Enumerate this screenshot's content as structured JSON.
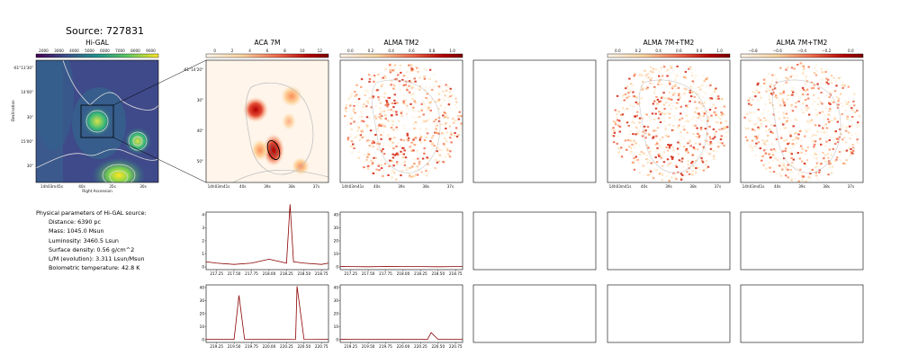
{
  "source": {
    "title": "Source: 727831"
  },
  "panels": [
    {
      "title": "Hi-GAL",
      "colorbar_ticks": [
        "2000",
        "3000",
        "4000",
        "5000",
        "6000",
        "7000",
        "8000",
        "9000"
      ],
      "xticks": [
        "14h03m45s",
        "40s",
        "35s",
        "30s"
      ],
      "yticks": [
        "-61°13'30\"",
        "14'00\"",
        "30\"",
        "15'00\"",
        "30\""
      ],
      "xlabel": "Right Ascension",
      "ylabel": "Declination"
    },
    {
      "title": "ACA 7M",
      "colorbar_ticks": [
        "0",
        "2",
        "4",
        "6",
        "8",
        "10",
        "12"
      ],
      "xticks": [
        "14h03m41s",
        "40s",
        "39s",
        "38s",
        "37s"
      ],
      "yticks": [
        "-61°14'20\"",
        "30\"",
        "40\"",
        "50\""
      ]
    },
    {
      "title": "ALMA TM2",
      "colorbar_ticks": [
        "0.0",
        "0.2",
        "0.4",
        "0.6",
        "0.8",
        "1.0"
      ],
      "xticks": [
        "14h03m41s",
        "40s",
        "39s",
        "38s",
        "37s"
      ]
    },
    {
      "title": "ALMA 7M+TM2",
      "colorbar_ticks": [
        "0.0",
        "0.2",
        "0.4",
        "0.6",
        "0.8",
        "1.0"
      ],
      "xticks": [
        "14h03m41s",
        "40s",
        "39s",
        "38s",
        "37s"
      ]
    },
    {
      "title": "ALMA 7M+TM2",
      "colorbar_ticks": [
        "−0.8",
        "−0.6",
        "−0.4",
        "−0.2",
        "0.0"
      ],
      "xticks": [
        "14h03m41s",
        "40s",
        "39s",
        "38s",
        "37s"
      ]
    }
  ],
  "parameters": {
    "heading": "Physical parameters of Hi-GAL source:",
    "lines": [
      "Distance: 6390 pc",
      "Mass: 1045.0 Msun",
      "Luminosity: 3460.5 Lsun",
      "Surface density: 0.56 g/cm^2",
      "L/M (evolution): 3.311 Lsun/Msun",
      "Bolometric temperature: 42.8 K"
    ]
  },
  "chart_data": [
    {
      "type": "line",
      "panel": "ACA 7M spectrum (row 1)",
      "x": [
        217.1,
        217.25,
        217.5,
        217.75,
        218.0,
        218.25,
        218.3,
        218.35,
        218.5,
        218.75,
        218.85
      ],
      "values": [
        0.4,
        0.3,
        0.2,
        0.3,
        0.6,
        0.3,
        4.8,
        0.4,
        0.3,
        0.2,
        0.3
      ],
      "xticks": [
        "217.25",
        "217.50",
        "217.75",
        "218.00",
        "218.25",
        "218.50",
        "218.75"
      ],
      "yticks": [
        "0",
        "1",
        "2",
        "3",
        "4"
      ],
      "xlim": [
        217.1,
        218.85
      ],
      "ylim": [
        -0.2,
        4.2
      ]
    },
    {
      "type": "line",
      "panel": "ALMA TM2 spectrum (row 1)",
      "x": [
        217.1,
        217.25,
        217.5,
        217.75,
        218.0,
        218.25,
        218.5,
        218.75,
        218.85
      ],
      "values": [
        0.4,
        0.3,
        0.2,
        0.4,
        0.3,
        0.3,
        0.2,
        0.3,
        0.3
      ],
      "xticks": [
        "217.25",
        "217.50",
        "217.75",
        "218.00",
        "218.25",
        "218.50",
        "218.75"
      ],
      "yticks": [
        "0",
        "10",
        "20",
        "30",
        "40"
      ],
      "xlim": [
        217.1,
        218.85
      ],
      "ylim": [
        -2,
        42
      ]
    },
    {
      "type": "line",
      "panel": "ACA 7M spectrum (row 2)",
      "x": [
        219.1,
        219.25,
        219.5,
        219.57,
        219.65,
        219.75,
        220.0,
        220.25,
        220.38,
        220.4,
        220.5,
        220.75,
        220.85
      ],
      "values": [
        0.5,
        0.4,
        0.3,
        34,
        0.4,
        0.3,
        0.3,
        0.4,
        0.5,
        41,
        0.4,
        0.3,
        0.4
      ],
      "xticks": [
        "219.25",
        "219.50",
        "219.75",
        "220.00",
        "220.25",
        "220.50",
        "220.75"
      ],
      "yticks": [
        "0",
        "10",
        "20",
        "30",
        "40"
      ],
      "xlim": [
        219.1,
        220.85
      ],
      "ylim": [
        -2,
        42
      ]
    },
    {
      "type": "line",
      "panel": "ALMA TM2 spectrum (row 2)",
      "x": [
        219.1,
        219.25,
        219.5,
        219.75,
        220.0,
        220.25,
        220.35,
        220.4,
        220.5,
        220.75,
        220.85
      ],
      "values": [
        0.4,
        0.3,
        0.3,
        0.4,
        0.3,
        0.4,
        0.4,
        5.5,
        0.3,
        0.3,
        0.3
      ],
      "xticks": [
        "219.25",
        "219.50",
        "219.75",
        "220.00",
        "220.25",
        "220.50",
        "220.75"
      ],
      "yticks": [
        "0",
        "10",
        "20",
        "30",
        "40"
      ],
      "xlim": [
        219.1,
        220.85
      ],
      "ylim": [
        -2,
        42
      ]
    }
  ]
}
